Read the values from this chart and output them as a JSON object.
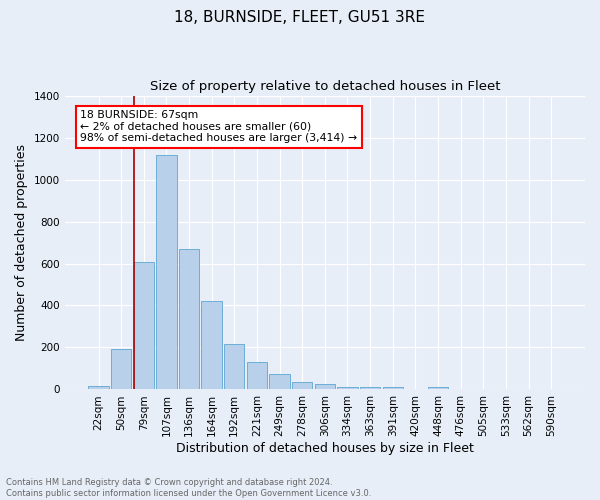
{
  "title": "18, BURNSIDE, FLEET, GU51 3RE",
  "subtitle": "Size of property relative to detached houses in Fleet",
  "xlabel": "Distribution of detached houses by size in Fleet",
  "ylabel": "Number of detached properties",
  "footnote": "Contains HM Land Registry data © Crown copyright and database right 2024.\nContains public sector information licensed under the Open Government Licence v3.0.",
  "bar_labels": [
    "22sqm",
    "50sqm",
    "79sqm",
    "107sqm",
    "136sqm",
    "164sqm",
    "192sqm",
    "221sqm",
    "249sqm",
    "278sqm",
    "306sqm",
    "334sqm",
    "363sqm",
    "391sqm",
    "420sqm",
    "448sqm",
    "476sqm",
    "505sqm",
    "533sqm",
    "562sqm",
    "590sqm"
  ],
  "bar_values": [
    18,
    193,
    608,
    1118,
    670,
    420,
    215,
    130,
    75,
    35,
    27,
    13,
    10,
    12,
    0,
    12,
    0,
    0,
    0,
    0,
    0
  ],
  "bar_color": "#b8d0ea",
  "bar_edgecolor": "#6aaed6",
  "annotation_box_text": "18 BURNSIDE: 67sqm\n← 2% of detached houses are smaller (60)\n98% of semi-detached houses are larger (3,414) →",
  "vline_color": "#aa0000",
  "ylim": [
    0,
    1400
  ],
  "yticks": [
    0,
    200,
    400,
    600,
    800,
    1000,
    1200,
    1400
  ],
  "bg_color": "#e8eef8",
  "grid_color": "#ffffff",
  "title_fontsize": 11,
  "subtitle_fontsize": 9.5,
  "axis_label_fontsize": 9,
  "tick_fontsize": 7.5,
  "footnote_fontsize": 6.0,
  "footnote_color": "#666666",
  "vline_x_index": 1.59
}
